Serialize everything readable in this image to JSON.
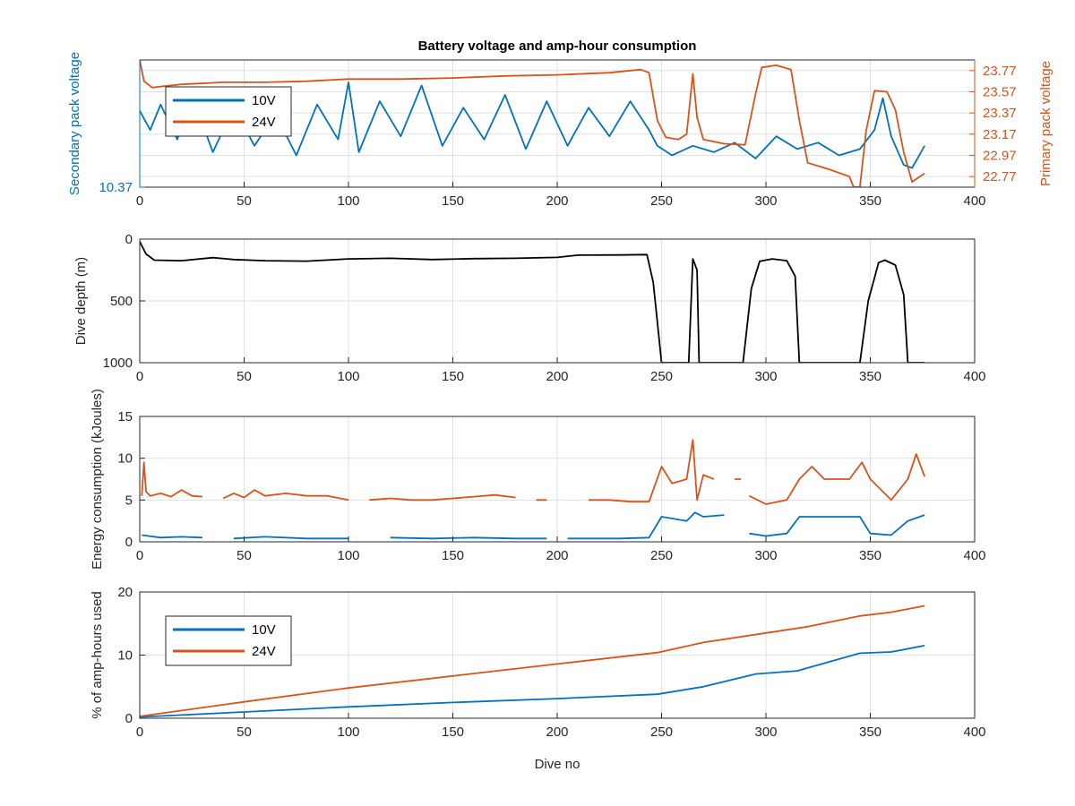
{
  "figure": {
    "title": "Battery voltage and amp-hour consumption",
    "xlabel": "Dive no"
  },
  "colors": {
    "series_10v": "#0072BD",
    "series_24v": "#D95319",
    "depth": "#000000",
    "axes": "#262626",
    "grid": "#dfdfdf"
  },
  "chart_data": [
    {
      "type": "line",
      "title": "Battery voltage and amp-hour consumption",
      "xlim": [
        0,
        400
      ],
      "xticks": [
        0,
        50,
        100,
        150,
        200,
        250,
        300,
        350,
        400
      ],
      "grid": true,
      "legend": {
        "placement": "top-left",
        "entries": [
          "10V",
          "24V"
        ]
      },
      "left_axis": {
        "label": "Secondary pack voltage",
        "ylim": [
          10.37,
          10.77
        ],
        "ticks": [
          10.37
        ],
        "tick_labels": [
          "10.37"
        ]
      },
      "right_axis": {
        "label": "Primary pack voltage",
        "ylim": [
          22.67,
          23.87
        ],
        "ticks": [
          22.77,
          22.97,
          23.17,
          23.37,
          23.57,
          23.77
        ],
        "tick_labels": [
          "22.77",
          "22.97",
          "23.17",
          "23.37",
          "23.57",
          "23.77"
        ]
      },
      "series": [
        {
          "name": "10V",
          "axis": "left",
          "points": [
            [
              0,
              10.61
            ],
            [
              5,
              10.55
            ],
            [
              10,
              10.63
            ],
            [
              18,
              10.52
            ],
            [
              25,
              10.66
            ],
            [
              35,
              10.48
            ],
            [
              45,
              10.62
            ],
            [
              55,
              10.5
            ],
            [
              65,
              10.6
            ],
            [
              75,
              10.47
            ],
            [
              85,
              10.63
            ],
            [
              95,
              10.52
            ],
            [
              100,
              10.7
            ],
            [
              105,
              10.48
            ],
            [
              115,
              10.64
            ],
            [
              125,
              10.53
            ],
            [
              135,
              10.69
            ],
            [
              145,
              10.5
            ],
            [
              155,
              10.62
            ],
            [
              165,
              10.52
            ],
            [
              175,
              10.66
            ],
            [
              185,
              10.49
            ],
            [
              195,
              10.64
            ],
            [
              205,
              10.5
            ],
            [
              215,
              10.62
            ],
            [
              225,
              10.53
            ],
            [
              235,
              10.64
            ],
            [
              244,
              10.55
            ],
            [
              248,
              10.5
            ],
            [
              255,
              10.47
            ],
            [
              265,
              10.5
            ],
            [
              275,
              10.48
            ],
            [
              285,
              10.51
            ],
            [
              295,
              10.46
            ],
            [
              305,
              10.53
            ],
            [
              315,
              10.49
            ],
            [
              325,
              10.51
            ],
            [
              335,
              10.47
            ],
            [
              345,
              10.49
            ],
            [
              352,
              10.55
            ],
            [
              356,
              10.65
            ],
            [
              360,
              10.53
            ],
            [
              366,
              10.44
            ],
            [
              370,
              10.43
            ],
            [
              376,
              10.5
            ]
          ]
        },
        {
          "name": "24V",
          "axis": "right",
          "points": [
            [
              0,
              23.87
            ],
            [
              2,
              23.67
            ],
            [
              6,
              23.61
            ],
            [
              10,
              23.62
            ],
            [
              20,
              23.64
            ],
            [
              40,
              23.66
            ],
            [
              60,
              23.66
            ],
            [
              80,
              23.67
            ],
            [
              100,
              23.69
            ],
            [
              125,
              23.69
            ],
            [
              150,
              23.7
            ],
            [
              175,
              23.72
            ],
            [
              200,
              23.73
            ],
            [
              225,
              23.75
            ],
            [
              240,
              23.78
            ],
            [
              244,
              23.75
            ],
            [
              248,
              23.3
            ],
            [
              252,
              23.14
            ],
            [
              258,
              23.12
            ],
            [
              262,
              23.17
            ],
            [
              265,
              23.74
            ],
            [
              267,
              23.33
            ],
            [
              270,
              23.12
            ],
            [
              280,
              23.08
            ],
            [
              290,
              23.07
            ],
            [
              295,
              23.55
            ],
            [
              298,
              23.8
            ],
            [
              305,
              23.82
            ],
            [
              312,
              23.78
            ],
            [
              316,
              23.3
            ],
            [
              320,
              22.9
            ],
            [
              330,
              22.84
            ],
            [
              340,
              22.77
            ],
            [
              342,
              22.67
            ],
            [
              345,
              22.67
            ],
            [
              348,
              23.2
            ],
            [
              352,
              23.58
            ],
            [
              358,
              23.57
            ],
            [
              362,
              23.4
            ],
            [
              366,
              23.0
            ],
            [
              370,
              22.72
            ],
            [
              376,
              22.8
            ]
          ]
        }
      ]
    },
    {
      "type": "line",
      "title": "",
      "xlim": [
        0,
        400
      ],
      "xticks": [
        0,
        50,
        100,
        150,
        200,
        250,
        300,
        350,
        400
      ],
      "ylabel": "Dive depth (m)",
      "ylim": [
        0,
        1000
      ],
      "y_reversed": true,
      "yticks": [
        0,
        500,
        1000
      ],
      "grid": true,
      "series": [
        {
          "name": "",
          "points": [
            [
              0,
              20
            ],
            [
              3,
              120
            ],
            [
              7,
              170
            ],
            [
              20,
              175
            ],
            [
              35,
              150
            ],
            [
              45,
              165
            ],
            [
              60,
              175
            ],
            [
              80,
              178
            ],
            [
              100,
              160
            ],
            [
              120,
              155
            ],
            [
              140,
              165
            ],
            [
              160,
              158
            ],
            [
              180,
              155
            ],
            [
              200,
              148
            ],
            [
              210,
              130
            ],
            [
              230,
              128
            ],
            [
              243,
              125
            ],
            [
              246,
              350
            ],
            [
              250,
              1000
            ],
            [
              263,
              1000
            ],
            [
              265,
              160
            ],
            [
              267,
              250
            ],
            [
              268,
              1000
            ],
            [
              289,
              1000
            ],
            [
              293,
              400
            ],
            [
              297,
              180
            ],
            [
              303,
              160
            ],
            [
              310,
              175
            ],
            [
              314,
              300
            ],
            [
              316,
              1000
            ],
            [
              345,
              1000
            ],
            [
              349,
              500
            ],
            [
              354,
              190
            ],
            [
              357,
              170
            ],
            [
              362,
              210
            ],
            [
              366,
              450
            ],
            [
              368,
              1000
            ],
            [
              376,
              1000
            ]
          ]
        }
      ]
    },
    {
      "type": "line",
      "title": "",
      "xlim": [
        0,
        400
      ],
      "xticks": [
        0,
        50,
        100,
        150,
        200,
        250,
        300,
        350,
        400
      ],
      "ylabel": "Energy consumption (kJoules)",
      "ylim": [
        0,
        15
      ],
      "yticks": [
        0,
        5,
        10,
        15
      ],
      "grid": true,
      "series": [
        {
          "name": "24V",
          "points": [
            [
              1,
              5.5
            ],
            [
              2,
              9.5
            ],
            [
              3,
              6.0
            ],
            [
              5,
              5.5
            ],
            [
              10,
              5.8
            ],
            [
              15,
              5.4
            ],
            [
              20,
              6.2
            ],
            [
              25,
              5.5
            ],
            [
              30,
              5.4
            ],
            [
              35,
              null
            ],
            [
              40,
              5.2
            ],
            [
              45,
              5.8
            ],
            [
              50,
              5.3
            ],
            [
              55,
              6.2
            ],
            [
              60,
              5.5
            ],
            [
              70,
              5.8
            ],
            [
              80,
              5.5
            ],
            [
              90,
              5.5
            ],
            [
              100,
              5.0
            ],
            [
              105,
              null
            ],
            [
              110,
              5.0
            ],
            [
              120,
              5.2
            ],
            [
              130,
              5.0
            ],
            [
              140,
              5.0
            ],
            [
              150,
              5.2
            ],
            [
              160,
              5.4
            ],
            [
              170,
              5.6
            ],
            [
              180,
              5.3
            ],
            [
              185,
              null
            ],
            [
              190,
              5.0
            ],
            [
              195,
              5.0
            ],
            [
              200,
              null
            ],
            [
              205,
              5.0
            ],
            [
              210,
              null
            ],
            [
              215,
              5.0
            ],
            [
              225,
              5.0
            ],
            [
              235,
              4.8
            ],
            [
              244,
              4.8
            ],
            [
              250,
              9.0
            ],
            [
              255,
              7.0
            ],
            [
              262,
              7.5
            ],
            [
              265,
              12.2
            ],
            [
              267,
              5.0
            ],
            [
              270,
              8.0
            ],
            [
              275,
              7.5
            ],
            [
              280,
              null
            ],
            [
              285,
              7.5
            ],
            [
              288,
              7.5
            ],
            [
              290,
              null
            ],
            [
              292,
              5.5
            ],
            [
              300,
              4.5
            ],
            [
              310,
              5.0
            ],
            [
              316,
              7.5
            ],
            [
              322,
              9.0
            ],
            [
              328,
              7.5
            ],
            [
              340,
              7.5
            ],
            [
              346,
              9.5
            ],
            [
              350,
              7.5
            ],
            [
              360,
              5.0
            ],
            [
              368,
              7.5
            ],
            [
              372,
              10.5
            ],
            [
              376,
              7.8
            ]
          ]
        },
        {
          "name": "10V",
          "points": [
            [
              1,
              0.8
            ],
            [
              10,
              0.5
            ],
            [
              20,
              0.6
            ],
            [
              30,
              0.5
            ],
            [
              35,
              null
            ],
            [
              45,
              0.4
            ],
            [
              60,
              0.6
            ],
            [
              80,
              0.4
            ],
            [
              100,
              0.4
            ],
            [
              105,
              null
            ],
            [
              120,
              0.5
            ],
            [
              140,
              0.4
            ],
            [
              160,
              0.5
            ],
            [
              180,
              0.4
            ],
            [
              195,
              0.4
            ],
            [
              200,
              null
            ],
            [
              205,
              0.4
            ],
            [
              230,
              0.4
            ],
            [
              244,
              0.5
            ],
            [
              250,
              3.0
            ],
            [
              262,
              2.5
            ],
            [
              266,
              3.5
            ],
            [
              270,
              3.0
            ],
            [
              280,
              3.2
            ],
            [
              285,
              null
            ],
            [
              292,
              1.0
            ],
            [
              300,
              0.7
            ],
            [
              310,
              1.0
            ],
            [
              316,
              3.0
            ],
            [
              330,
              3.0
            ],
            [
              345,
              3.0
            ],
            [
              350,
              1.0
            ],
            [
              360,
              0.8
            ],
            [
              368,
              2.5
            ],
            [
              376,
              3.2
            ]
          ]
        }
      ]
    },
    {
      "type": "line",
      "title": "",
      "xlim": [
        0,
        400
      ],
      "xticks": [
        0,
        50,
        100,
        150,
        200,
        250,
        300,
        350,
        400
      ],
      "xlabel": "Dive no",
      "ylabel": "% of amp-hours used",
      "ylim": [
        0,
        20
      ],
      "yticks": [
        0,
        10,
        20
      ],
      "grid": true,
      "legend": {
        "placement": "top-left",
        "entries": [
          "10V",
          "24V"
        ]
      },
      "series": [
        {
          "name": "10V",
          "points": [
            [
              0,
              0.2
            ],
            [
              50,
              1.0
            ],
            [
              100,
              1.8
            ],
            [
              150,
              2.5
            ],
            [
              200,
              3.1
            ],
            [
              248,
              3.8
            ],
            [
              270,
              5.0
            ],
            [
              295,
              7.0
            ],
            [
              315,
              7.5
            ],
            [
              345,
              10.3
            ],
            [
              360,
              10.5
            ],
            [
              376,
              11.5
            ]
          ]
        },
        {
          "name": "24V",
          "points": [
            [
              0,
              0.3
            ],
            [
              50,
              2.6
            ],
            [
              100,
              4.8
            ],
            [
              150,
              6.7
            ],
            [
              200,
              8.6
            ],
            [
              248,
              10.4
            ],
            [
              270,
              12.0
            ],
            [
              300,
              13.5
            ],
            [
              320,
              14.5
            ],
            [
              345,
              16.2
            ],
            [
              360,
              16.8
            ],
            [
              376,
              17.8
            ]
          ]
        }
      ]
    }
  ]
}
